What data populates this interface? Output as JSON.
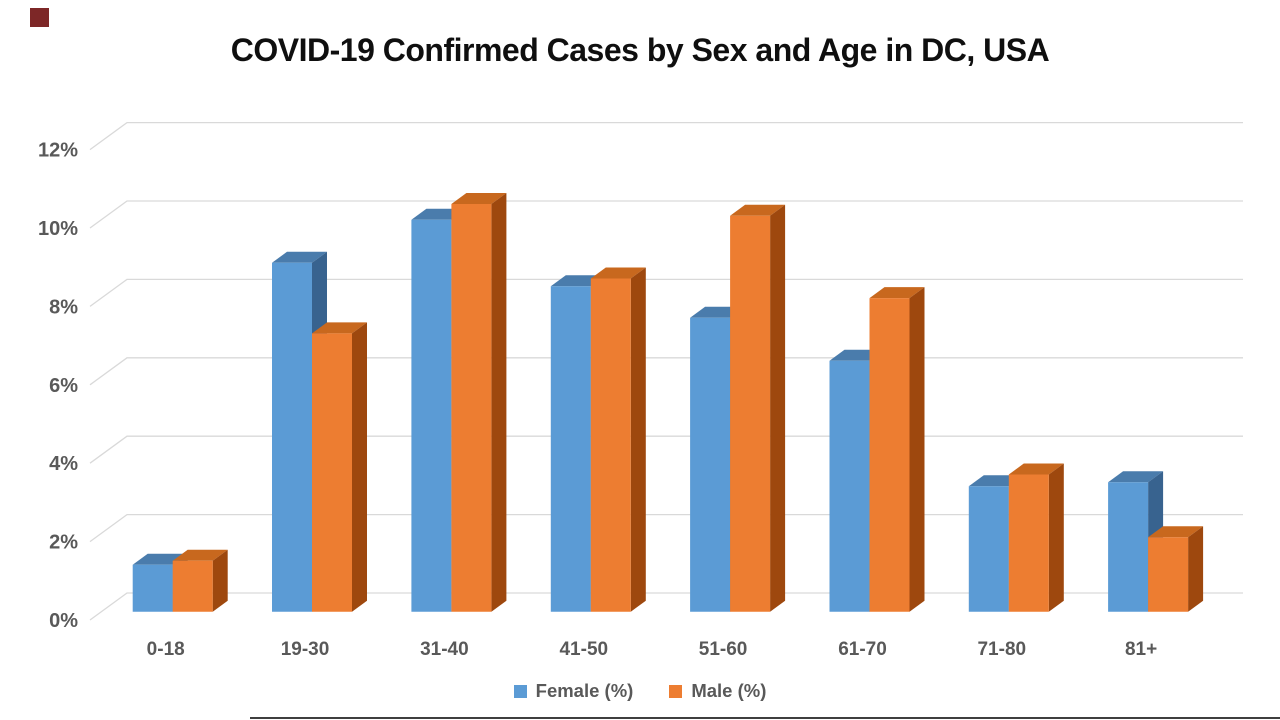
{
  "title": "COVID-19 Confirmed Cases by Sex and Age in DC, USA",
  "chart_data": {
    "type": "bar",
    "subtype": "3d-clustered-column",
    "title": "COVID-19 Confirmed Cases by Sex and Age in DC, USA",
    "categories": [
      "0-18",
      "19-30",
      "31-40",
      "41-50",
      "51-60",
      "61-70",
      "71-80",
      "81+"
    ],
    "series": [
      {
        "name": "Female (%)",
        "color": "#5B9BD5",
        "values": [
          1.2,
          8.9,
          10.0,
          8.3,
          7.5,
          6.4,
          3.2,
          3.3
        ]
      },
      {
        "name": "Male (%)",
        "color": "#ED7D31",
        "values": [
          1.3,
          7.1,
          10.4,
          8.5,
          10.1,
          8.0,
          3.5,
          1.9
        ]
      }
    ],
    "xlabel": "",
    "ylabel": "",
    "ylim": [
      0,
      12
    ],
    "ytick_step": 2,
    "ytick_labels": [
      "0%",
      "2%",
      "4%",
      "6%",
      "8%",
      "10%",
      "12%"
    ],
    "grid": true,
    "legend_position": "bottom"
  },
  "colors": {
    "female": {
      "front": "#5B9BD5",
      "top": "#4A7CAC",
      "side": "#38638F"
    },
    "male": {
      "front": "#ED7D31",
      "top": "#C8681E",
      "side": "#9E480E"
    },
    "gridline": "#D9D9D9",
    "tick_label": "#595959",
    "title_text": "#0F0F0F"
  },
  "decorations": {
    "corner_square_color": "#7D2727",
    "bottom_line_color": "#3F3F3F"
  }
}
